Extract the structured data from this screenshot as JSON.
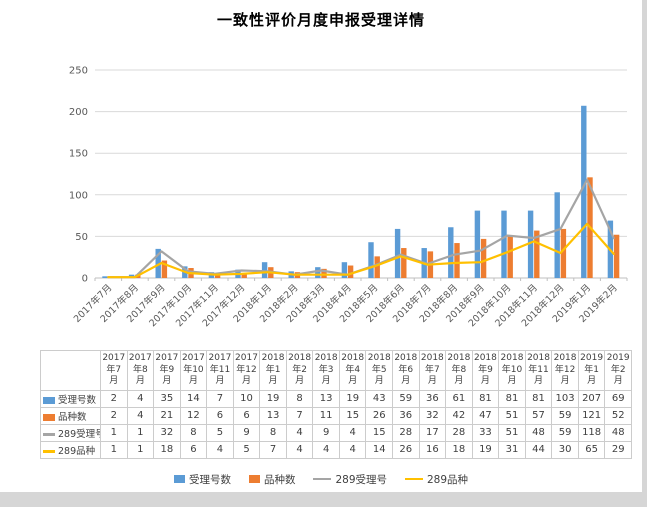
{
  "window": {
    "background": "#ffffff",
    "frame_color": "#d6d6d6"
  },
  "chart_data": {
    "type": "combo",
    "title": "一致性评价月度申报受理详情",
    "categories": [
      "2017年7月",
      "2017年8月",
      "2017年9月",
      "2017年10月",
      "2017年11月",
      "2017年12月",
      "2018年1月",
      "2018年2月",
      "2018年3月",
      "2018年4月",
      "2018年5月",
      "2018年6月",
      "2018年7月",
      "2018年8月",
      "2018年9月",
      "2018年10月",
      "2018年11月",
      "2018年12月",
      "2019年1月",
      "2019年2月"
    ],
    "series": [
      {
        "name": "受理号数",
        "chart": "bar",
        "color": "#5B9BD5",
        "values": [
          2,
          4,
          35,
          14,
          7,
          10,
          19,
          8,
          13,
          19,
          43,
          59,
          36,
          61,
          81,
          81,
          81,
          103,
          207,
          69
        ]
      },
      {
        "name": "品种数",
        "chart": "bar",
        "color": "#ED7D31",
        "values": [
          2,
          4,
          21,
          12,
          6,
          6,
          13,
          7,
          11,
          15,
          26,
          36,
          32,
          42,
          47,
          51,
          57,
          59,
          121,
          52
        ]
      },
      {
        "name": "289受理号",
        "chart": "line",
        "color": "#A5A5A5",
        "values": [
          1,
          1,
          32,
          8,
          5,
          9,
          8,
          4,
          9,
          4,
          15,
          28,
          17,
          28,
          33,
          51,
          48,
          59,
          118,
          48
        ]
      },
      {
        "name": "289品种",
        "chart": "line",
        "color": "#FFC000",
        "values": [
          1,
          1,
          18,
          6,
          4,
          5,
          7,
          4,
          4,
          4,
          14,
          26,
          16,
          18,
          19,
          31,
          44,
          30,
          65,
          29
        ]
      }
    ],
    "ylim": [
      0,
      250
    ],
    "yticks": [
      0,
      50,
      100,
      150,
      200,
      250
    ],
    "grid": true,
    "gridline_color": "#d9d9d9",
    "axis_line_color": "#bfbfbf",
    "axis_text_color": "#595959",
    "legend_position": "bottom",
    "data_table_shown": true
  }
}
